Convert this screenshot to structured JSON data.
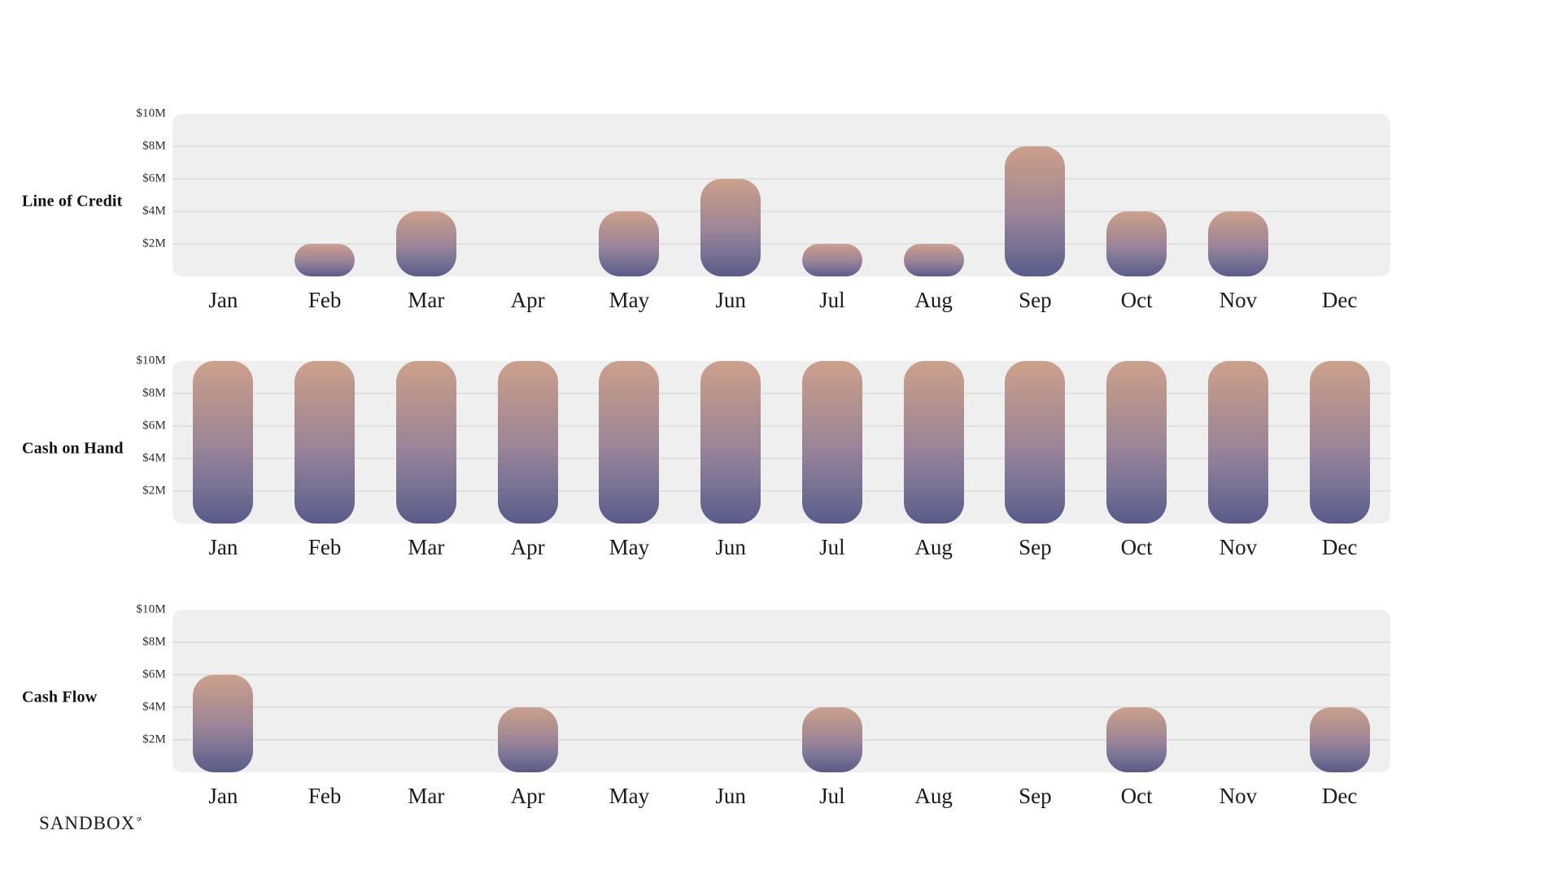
{
  "brand": {
    "name": "SANDBOX",
    "mark": "∝"
  },
  "axis": {
    "tick_labels": [
      "$10M",
      "$8M",
      "$6M",
      "$4M",
      "$2M"
    ],
    "max": 10,
    "tick_step": 2,
    "unit": "millions USD"
  },
  "months": [
    "Jan",
    "Feb",
    "Mar",
    "Apr",
    "May",
    "Jun",
    "Jul",
    "Aug",
    "Sep",
    "Oct",
    "Nov",
    "Dec"
  ],
  "colors": {
    "bar_gradient_top": "#cda08c",
    "bar_gradient_mid": "#9c8598",
    "bar_gradient_bottom": "#585b89",
    "plot_background": "#efefef",
    "gridline": "#e0e0e0",
    "text": "#1a1a1a"
  },
  "chart_data": [
    {
      "type": "bar",
      "title": "Line of Credit",
      "categories": [
        "Jan",
        "Feb",
        "Mar",
        "Apr",
        "May",
        "Jun",
        "Jul",
        "Aug",
        "Sep",
        "Oct",
        "Nov",
        "Dec"
      ],
      "values": [
        0,
        2,
        4,
        0,
        4,
        6,
        2,
        2,
        8,
        4,
        4,
        0
      ],
      "ylabel": "",
      "ytick_labels": [
        "$10M",
        "$8M",
        "$6M",
        "$4M",
        "$2M"
      ],
      "ylim": [
        0,
        10
      ],
      "unit": "millions USD",
      "grid": "horizontal",
      "legend": "none"
    },
    {
      "type": "bar",
      "title": "Cash on Hand",
      "categories": [
        "Jan",
        "Feb",
        "Mar",
        "Apr",
        "May",
        "Jun",
        "Jul",
        "Aug",
        "Sep",
        "Oct",
        "Nov",
        "Dec"
      ],
      "values": [
        10,
        10,
        10,
        10,
        10,
        10,
        10,
        10,
        10,
        10,
        10,
        10
      ],
      "ylabel": "",
      "ytick_labels": [
        "$10M",
        "$8M",
        "$6M",
        "$4M",
        "$2M"
      ],
      "ylim": [
        0,
        10
      ],
      "unit": "millions USD",
      "grid": "horizontal",
      "legend": "none"
    },
    {
      "type": "bar",
      "title": "Cash Flow",
      "categories": [
        "Jan",
        "Feb",
        "Mar",
        "Apr",
        "May",
        "Jun",
        "Jul",
        "Aug",
        "Sep",
        "Oct",
        "Nov",
        "Dec"
      ],
      "values": [
        6,
        0,
        0,
        4,
        0,
        0,
        4,
        0,
        0,
        4,
        0,
        4
      ],
      "ylabel": "",
      "ytick_labels": [
        "$10M",
        "$8M",
        "$6M",
        "$4M",
        "$2M"
      ],
      "ylim": [
        0,
        10
      ],
      "unit": "millions USD",
      "grid": "horizontal",
      "legend": "none"
    }
  ]
}
